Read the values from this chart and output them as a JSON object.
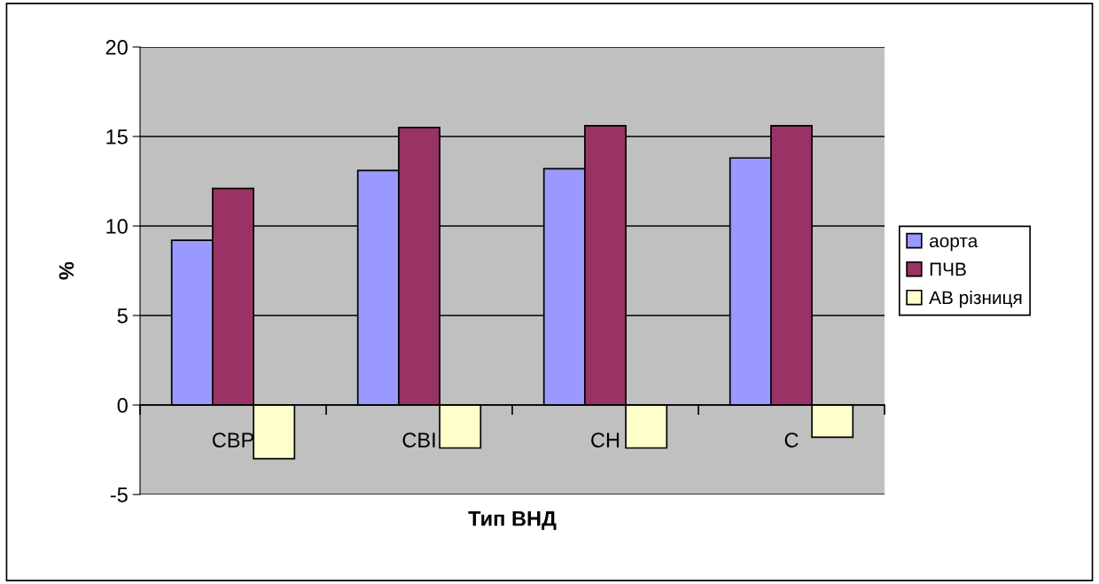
{
  "chart_data": {
    "type": "bar",
    "xlabel": "Тип ВНД",
    "ylabel": "%",
    "categories": [
      "СВР",
      "СВІ",
      "СН",
      "С"
    ],
    "series": [
      {
        "name": "аорта",
        "color": "#9999ff",
        "values": [
          9.2,
          13.1,
          13.2,
          13.8
        ]
      },
      {
        "name": "ПЧВ",
        "color": "#993366",
        "values": [
          12.1,
          15.5,
          15.6,
          15.6
        ]
      },
      {
        "name": "АВ різниця",
        "color": "#ffffcc",
        "values": [
          -3.0,
          -2.4,
          -2.4,
          -1.8
        ]
      }
    ],
    "ylim": [
      -5,
      20
    ],
    "yticks": [
      -5,
      0,
      5,
      10,
      15,
      20
    ],
    "grid": "y",
    "legend": "right"
  }
}
